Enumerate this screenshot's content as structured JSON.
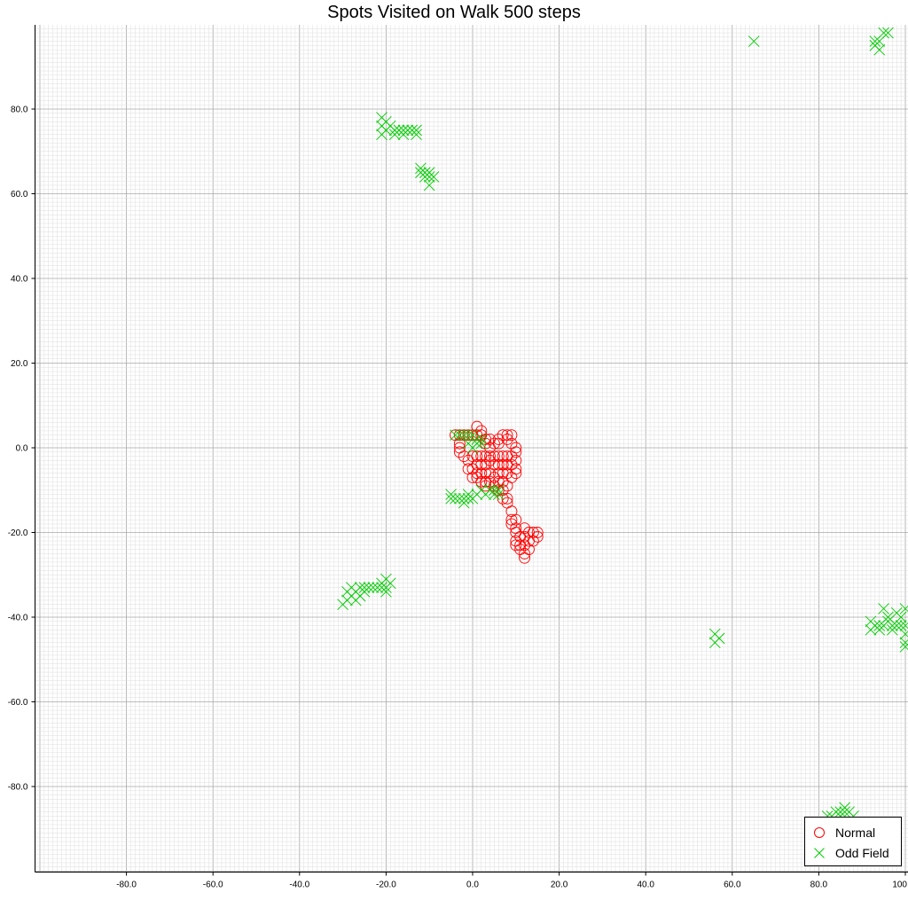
{
  "chart_data": {
    "type": "scatter",
    "title": "Spots Visited on Walk 500 steps",
    "xlabel": "",
    "ylabel": "",
    "xlim": [
      -100,
      100
    ],
    "ylim": [
      -100,
      100
    ],
    "x_ticks": [
      "-80.0",
      "-60.0",
      "-40.0",
      "-20.0",
      "0.0",
      "20.0",
      "40.0",
      "60.0",
      "80.0",
      "100"
    ],
    "y_ticks": [
      "80.0",
      "60.0",
      "40.0",
      "20.0",
      "0.0",
      "-20.0",
      "-40.0",
      "-60.0",
      "-80.0"
    ],
    "grid": true,
    "legend_position": "bottom-right",
    "series": [
      {
        "name": "Normal",
        "marker": "circle",
        "color": "#ff0000",
        "points": [
          [
            -4,
            3
          ],
          [
            -3,
            3
          ],
          [
            -2,
            3
          ],
          [
            -1,
            3
          ],
          [
            0,
            3
          ],
          [
            1,
            3
          ],
          [
            1,
            5
          ],
          [
            2,
            3
          ],
          [
            2,
            4
          ],
          [
            3,
            2
          ],
          [
            3,
            1
          ],
          [
            4,
            2
          ],
          [
            4,
            0
          ],
          [
            5,
            1
          ],
          [
            6,
            2
          ],
          [
            6,
            1
          ],
          [
            7,
            3
          ],
          [
            8,
            3
          ],
          [
            9,
            3
          ],
          [
            8,
            2
          ],
          [
            9,
            1
          ],
          [
            10,
            0
          ],
          [
            10,
            -1
          ],
          [
            10,
            -3
          ],
          [
            10,
            -5
          ],
          [
            10,
            -6
          ],
          [
            -3,
            1
          ],
          [
            -3,
            0
          ],
          [
            -3,
            -1
          ],
          [
            -2,
            -2
          ],
          [
            -1,
            -3
          ],
          [
            0,
            -2
          ],
          [
            1,
            -2
          ],
          [
            2,
            -2
          ],
          [
            3,
            -2
          ],
          [
            4,
            -2
          ],
          [
            5,
            -2
          ],
          [
            6,
            -2
          ],
          [
            7,
            -2
          ],
          [
            8,
            -2
          ],
          [
            9,
            -2
          ],
          [
            1,
            -4
          ],
          [
            2,
            -4
          ],
          [
            3,
            -4
          ],
          [
            4,
            -3
          ],
          [
            5,
            -4
          ],
          [
            6,
            -4
          ],
          [
            7,
            -4
          ],
          [
            8,
            -4
          ],
          [
            9,
            -4
          ],
          [
            -1,
            -5
          ],
          [
            0,
            -5
          ],
          [
            1,
            -6
          ],
          [
            2,
            -6
          ],
          [
            3,
            -6
          ],
          [
            4,
            -6
          ],
          [
            5,
            -7
          ],
          [
            6,
            -6
          ],
          [
            7,
            -6
          ],
          [
            8,
            -6
          ],
          [
            9,
            -7
          ],
          [
            0,
            -7
          ],
          [
            1,
            -7
          ],
          [
            2,
            -8
          ],
          [
            3,
            -8
          ],
          [
            4,
            -8
          ],
          [
            6,
            -8
          ],
          [
            7,
            -8
          ],
          [
            8,
            -9
          ],
          [
            3,
            -9
          ],
          [
            5,
            -9
          ],
          [
            6,
            -10
          ],
          [
            7,
            -10
          ],
          [
            7,
            -12
          ],
          [
            8,
            -12
          ],
          [
            8,
            -13
          ],
          [
            9,
            -15
          ],
          [
            9,
            -17
          ],
          [
            9,
            -18
          ],
          [
            10,
            -17
          ],
          [
            10,
            -19
          ],
          [
            10,
            -20
          ],
          [
            10,
            -22
          ],
          [
            10,
            -23
          ],
          [
            11,
            -21
          ],
          [
            11,
            -23
          ],
          [
            12,
            -19
          ],
          [
            12,
            -21
          ],
          [
            12,
            -23
          ],
          [
            12,
            -25
          ],
          [
            12,
            -26
          ],
          [
            13,
            -20
          ],
          [
            13,
            -22
          ],
          [
            13,
            -24
          ],
          [
            14,
            -20
          ],
          [
            14,
            -22
          ],
          [
            15,
            -20
          ],
          [
            15,
            -21
          ],
          [
            11,
            -24
          ]
        ]
      },
      {
        "name": "Odd Field",
        "marker": "x",
        "color": "#00cc00",
        "points": [
          [
            -21,
            78
          ],
          [
            -21,
            76
          ],
          [
            -21,
            74
          ],
          [
            -20,
            77
          ],
          [
            -20,
            75
          ],
          [
            -19,
            76
          ],
          [
            -18,
            74
          ],
          [
            -18,
            75
          ],
          [
            -17,
            75
          ],
          [
            -16,
            74
          ],
          [
            -16,
            75
          ],
          [
            -15,
            75
          ],
          [
            -14,
            75
          ],
          [
            -13,
            74
          ],
          [
            -13,
            75
          ],
          [
            -12,
            66
          ],
          [
            -12,
            65
          ],
          [
            -11,
            65
          ],
          [
            -11,
            64
          ],
          [
            -10,
            65
          ],
          [
            -10,
            64
          ],
          [
            -10,
            62
          ],
          [
            -9,
            64
          ],
          [
            65,
            96
          ],
          [
            93,
            96
          ],
          [
            93,
            95
          ],
          [
            94,
            94
          ],
          [
            94,
            96
          ],
          [
            95,
            98
          ],
          [
            96,
            98
          ],
          [
            -5,
            -11
          ],
          [
            -5,
            -12
          ],
          [
            -4,
            -12
          ],
          [
            -3,
            -12
          ],
          [
            -2,
            -12
          ],
          [
            -2,
            -13
          ],
          [
            -1,
            -12
          ],
          [
            -1,
            -11
          ],
          [
            0,
            -12
          ],
          [
            1,
            -11
          ],
          [
            2,
            -10
          ],
          [
            3,
            -11
          ],
          [
            4,
            -10
          ],
          [
            5,
            -10
          ],
          [
            5,
            -11
          ],
          [
            6,
            -10
          ],
          [
            6,
            -11
          ],
          [
            -4,
            3
          ],
          [
            -3,
            3
          ],
          [
            -2,
            3
          ],
          [
            -1,
            3
          ],
          [
            0,
            3
          ],
          [
            1,
            1
          ],
          [
            1,
            2
          ],
          [
            2,
            1
          ],
          [
            2,
            2
          ],
          [
            0,
            0
          ],
          [
            -1,
            1
          ],
          [
            -30,
            -37
          ],
          [
            -29,
            -36
          ],
          [
            -29,
            -34
          ],
          [
            -28,
            -33
          ],
          [
            -28,
            -35
          ],
          [
            -27,
            -34
          ],
          [
            -27,
            -36
          ],
          [
            -26,
            -33
          ],
          [
            -26,
            -35
          ],
          [
            -25,
            -33
          ],
          [
            -25,
            -34
          ],
          [
            -24,
            -33
          ],
          [
            -23,
            -33
          ],
          [
            -22,
            -33
          ],
          [
            -21,
            -32
          ],
          [
            -21,
            -33
          ],
          [
            -20,
            -31
          ],
          [
            -20,
            -33
          ],
          [
            -20,
            -34
          ],
          [
            -19,
            -32
          ],
          [
            56,
            -44
          ],
          [
            56,
            -46
          ],
          [
            57,
            -45
          ],
          [
            92,
            -41
          ],
          [
            92,
            -43
          ],
          [
            93,
            -42
          ],
          [
            94,
            -42
          ],
          [
            94,
            -43
          ],
          [
            95,
            -42
          ],
          [
            95,
            -38
          ],
          [
            96,
            -40
          ],
          [
            96,
            -41
          ],
          [
            97,
            -42
          ],
          [
            97,
            -43
          ],
          [
            98,
            -39
          ],
          [
            98,
            -42
          ],
          [
            99,
            -40
          ],
          [
            99,
            -42
          ],
          [
            100,
            -38
          ],
          [
            100,
            -42
          ],
          [
            100,
            -44
          ],
          [
            100,
            -46
          ],
          [
            100,
            -47
          ],
          [
            82,
            -87
          ],
          [
            83,
            -87
          ],
          [
            84,
            -86
          ],
          [
            85,
            -86
          ],
          [
            85,
            -87
          ],
          [
            86,
            -86
          ],
          [
            87,
            -86
          ],
          [
            88,
            -87
          ],
          [
            86,
            -85
          ]
        ]
      }
    ]
  }
}
